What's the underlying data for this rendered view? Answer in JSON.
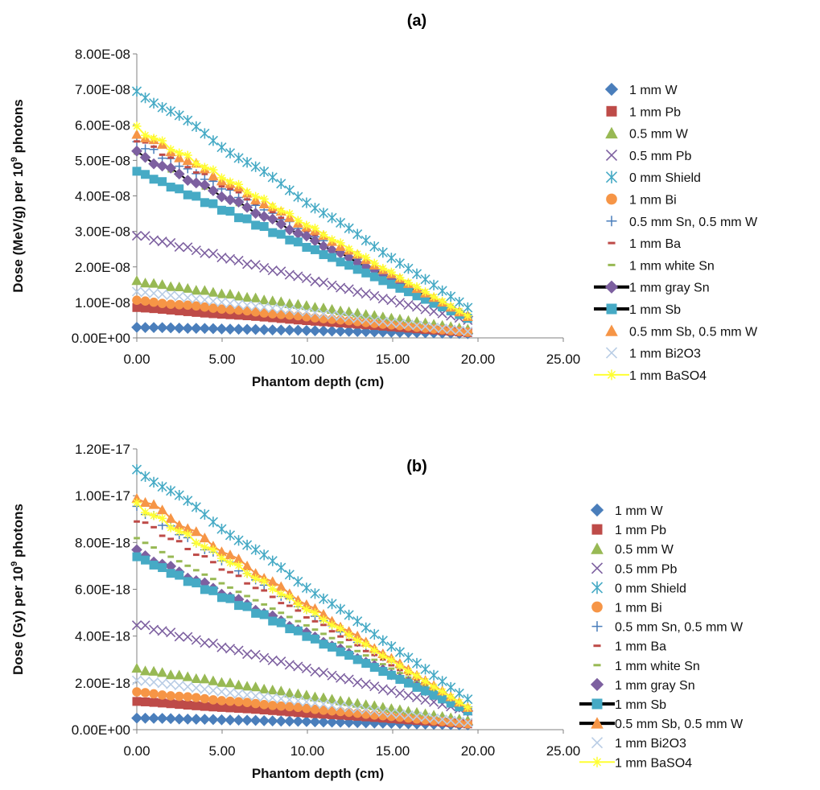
{
  "chart_data": [
    {
      "type": "scatter",
      "title": "(a)",
      "xlabel": "Phantom depth (cm)",
      "ylabel": "Dose (MeV/g) per 10^9 photons",
      "ylabel_parts": [
        "Dose (MeV/g) per 10",
        "9",
        " photons"
      ],
      "xlim": [
        0,
        25
      ],
      "ylim": [
        0,
        8e-08
      ],
      "x_ticks": [
        0,
        5,
        10,
        15,
        20,
        25
      ],
      "x_tick_labels": [
        "0.00",
        "5.00",
        "10.00",
        "15.00",
        "20.00",
        "25.00"
      ],
      "y_ticks": [
        0,
        1e-08,
        2e-08,
        3e-08,
        4e-08,
        5e-08,
        6e-08,
        7e-08,
        8e-08
      ],
      "y_tick_labels": [
        "0.00E+00",
        "1.00E-08",
        "2.00E-08",
        "3.00E-08",
        "4.00E-08",
        "5.00E-08",
        "6.00E-08",
        "7.00E-08",
        "8.00E-08"
      ],
      "grid": false,
      "legend_position": "right",
      "x_range": [
        0,
        19.4
      ],
      "series": [
        {
          "name": "1 mm W",
          "marker": "diamond",
          "color": "#4a7ebb",
          "start": 3e-09,
          "end": 1.2e-09
        },
        {
          "name": "1 mm Pb",
          "marker": "square",
          "color": "#be4b48",
          "start": 8.5e-09,
          "end": 1.5e-09
        },
        {
          "name": "0.5 mm W",
          "marker": "triangle",
          "color": "#98b954",
          "start": 1.6e-08,
          "end": 2.5e-09
        },
        {
          "name": "0.5 mm Pb",
          "marker": "x",
          "color": "#7d60a0",
          "start": 2.9e-08,
          "end": 5e-09
        },
        {
          "name": "0 mm Shield",
          "marker": "asterisk",
          "color": "#46aac5",
          "start": 7e-08,
          "end": 8.5e-09
        },
        {
          "name": "1 mm Bi",
          "marker": "circle",
          "color": "#f69546",
          "start": 1.05e-08,
          "end": 1.6e-09
        },
        {
          "name": "0.5 mm Sn, 0.5 mm W",
          "marker": "plus",
          "color": "#4a7ebb",
          "start": 5.5e-08,
          "end": 6e-09
        },
        {
          "name": "1 mm Ba",
          "marker": "dash",
          "color": "#be4b48",
          "start": 5.6e-08,
          "end": 6e-09
        },
        {
          "name": "1 mm white Sn",
          "marker": "dash",
          "color": "#98b954",
          "start": 5.2e-08,
          "end": 6e-09
        },
        {
          "name": "1 mm gray Sn",
          "marker": "diamond-line",
          "color": "#7d60a0",
          "start": 5.2e-08,
          "end": 6e-09
        },
        {
          "name": "1 mm Sb",
          "marker": "square-line",
          "color": "#46aac5",
          "start": 4.7e-08,
          "end": 5.5e-09
        },
        {
          "name": "0.5 mm Sb, 0.5 mm W",
          "marker": "triangle",
          "color": "#f69546",
          "start": 5.8e-08,
          "end": 6e-09
        },
        {
          "name": "1 mm Bi2O3",
          "marker": "x",
          "color": "#b9cde5",
          "start": 1.3e-08,
          "end": 1.8e-09
        },
        {
          "name": "1 mm BaSO4",
          "marker": "star-line",
          "color": "#ffff33",
          "start": 5.9e-08,
          "end": 6.2e-09
        }
      ]
    },
    {
      "type": "scatter",
      "title": "(b)",
      "xlabel": "Phantom depth (cm)",
      "ylabel": "Dose (Gy) per 10^9 photons",
      "ylabel_parts": [
        "Dose (Gy) per 10",
        "9",
        " photons"
      ],
      "xlim": [
        0,
        25
      ],
      "ylim": [
        0,
        1.2e-17
      ],
      "x_ticks": [
        0,
        5,
        10,
        15,
        20,
        25
      ],
      "x_tick_labels": [
        "0.00",
        "5.00",
        "10.00",
        "15.00",
        "20.00",
        "25.00"
      ],
      "y_ticks": [
        0,
        2e-18,
        4e-18,
        6e-18,
        8e-18,
        1e-17,
        1.2e-17
      ],
      "y_tick_labels": [
        "0.00E+00",
        "2.00E-18",
        "4.00E-18",
        "6.00E-18",
        "8.00E-18",
        "1.00E-17",
        "1.20E-17"
      ],
      "grid": false,
      "legend_position": "right",
      "x_range": [
        0,
        19.4
      ],
      "series": [
        {
          "name": "1 mm W",
          "marker": "diamond",
          "color": "#4a7ebb",
          "start": 5e-19,
          "end": 2e-19
        },
        {
          "name": "1 mm Pb",
          "marker": "square",
          "color": "#be4b48",
          "start": 1.2e-18,
          "end": 2.5e-19
        },
        {
          "name": "0.5 mm W",
          "marker": "triangle",
          "color": "#98b954",
          "start": 2.6e-18,
          "end": 4e-19
        },
        {
          "name": "0.5 mm Pb",
          "marker": "x",
          "color": "#7d60a0",
          "start": 4.5e-18,
          "end": 8e-19
        },
        {
          "name": "0 mm Shield",
          "marker": "asterisk",
          "color": "#46aac5",
          "start": 1.12e-17,
          "end": 1.3e-18
        },
        {
          "name": "1 mm Bi",
          "marker": "circle",
          "color": "#f69546",
          "start": 1.6e-18,
          "end": 2.5e-19
        },
        {
          "name": "0.5 mm Sn, 0.5 mm W",
          "marker": "plus",
          "color": "#4a7ebb",
          "start": 9.5e-18,
          "end": 9e-19
        },
        {
          "name": "1 mm Ba",
          "marker": "dash",
          "color": "#be4b48",
          "start": 9e-18,
          "end": 9e-19
        },
        {
          "name": "1 mm white Sn",
          "marker": "dash",
          "color": "#98b954",
          "start": 8.2e-18,
          "end": 9e-19
        },
        {
          "name": "1 mm gray Sn",
          "marker": "diamond",
          "color": "#7d60a0",
          "start": 7.6e-18,
          "end": 8e-19
        },
        {
          "name": "1 mm Sb",
          "marker": "square-line",
          "color": "#46aac5",
          "start": 7.4e-18,
          "end": 8e-19
        },
        {
          "name": "0.5 mm Sb, 0.5 mm W",
          "marker": "triangle-line",
          "color": "#f69546",
          "start": 1e-17,
          "end": 9.5e-19
        },
        {
          "name": "1 mm Bi2O3",
          "marker": "x",
          "color": "#b9cde5",
          "start": 2.1e-18,
          "end": 3e-19
        },
        {
          "name": "1 mm BaSO4",
          "marker": "star-line",
          "color": "#ffff33",
          "start": 9.6e-18,
          "end": 9.5e-19
        }
      ]
    }
  ]
}
